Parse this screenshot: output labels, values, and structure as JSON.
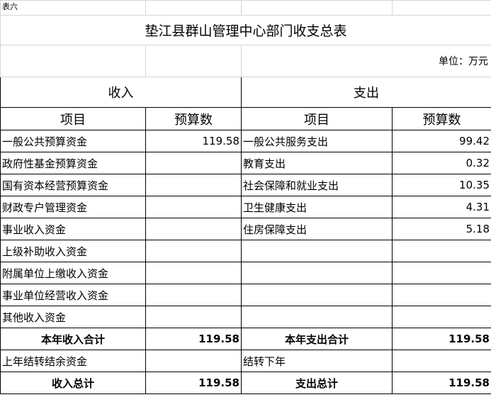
{
  "caption": "表六",
  "title": "垫江县群山管理中心部门收支总表",
  "unit": "单位：万元",
  "sections": {
    "income": "收入",
    "expense": "支出"
  },
  "columns": [
    "项目",
    "预算数",
    "项目",
    "预算数"
  ],
  "rows": [
    [
      "一般公共预算资金",
      119.58,
      "一般公共服务支出",
      99.42
    ],
    [
      "政府性基金预算资金",
      null,
      "教育支出",
      0.32
    ],
    [
      "国有资本经营预算资金",
      null,
      "社会保障和就业支出",
      10.35
    ],
    [
      "财政专户管理资金",
      null,
      "卫生健康支出",
      4.31
    ],
    [
      "事业收入资金",
      null,
      "住房保障支出",
      5.18
    ],
    [
      "上级补助收入资金",
      null,
      null,
      null
    ],
    [
      "附属单位上缴收入资金",
      null,
      null,
      null
    ],
    [
      "事业单位经营收入资金",
      null,
      null,
      null
    ],
    [
      "其他收入资金",
      null,
      null,
      null
    ]
  ],
  "total_row": [
    "本年收入合计",
    119.58,
    "本年支出合计",
    119.58
  ],
  "carryover_row": [
    "上年结转结余资金",
    null,
    "结转下年",
    null
  ],
  "grand_total_row": [
    "收入总计",
    119.58,
    "支出总计",
    119.58
  ]
}
